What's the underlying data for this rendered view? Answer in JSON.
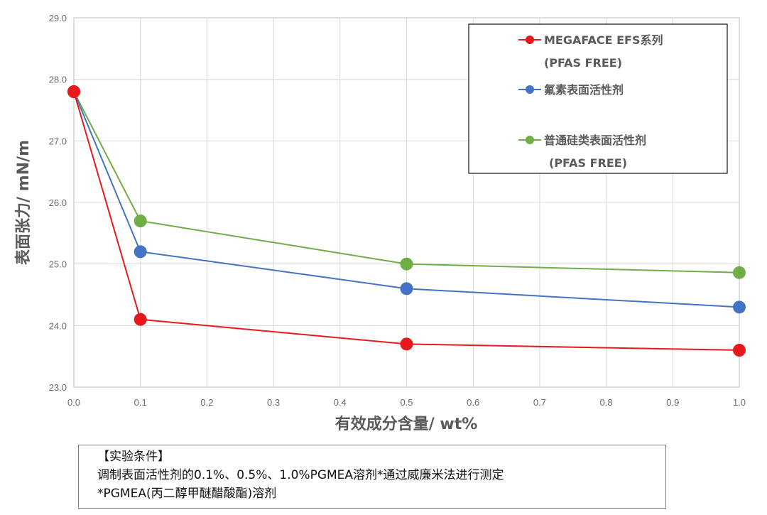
{
  "chart_data": {
    "type": "line",
    "xlabel": "有效成分含量/ wt%",
    "ylabel": "表面张力/ mN/m",
    "xlim": [
      0.0,
      1.0
    ],
    "ylim": [
      23.0,
      29.0
    ],
    "x_ticks": [
      "0.0",
      "0.1",
      "0.2",
      "0.3",
      "0.4",
      "0.5",
      "0.6",
      "0.7",
      "0.8",
      "0.9",
      "1.0"
    ],
    "y_ticks": [
      "23.0",
      "24.0",
      "25.0",
      "26.0",
      "27.0",
      "28.0",
      "29.0"
    ],
    "grid": true,
    "legend_position": "top-right",
    "series": [
      {
        "name": "MEGAFACE EFS系列",
        "name_line2": "(PFAS FREE)",
        "color": "#e8191c",
        "x": [
          0.0,
          0.1,
          0.5,
          1.0
        ],
        "y": [
          27.8,
          24.1,
          23.7,
          23.6
        ]
      },
      {
        "name": "氟素表面活性剂",
        "color": "#4472c4",
        "x": [
          0.0,
          0.1,
          0.5,
          1.0
        ],
        "y": [
          27.8,
          25.2,
          24.6,
          24.3
        ]
      },
      {
        "name": "普通硅类表面活性剂",
        "name_line2": "(PFAS FREE)",
        "color": "#70ad47",
        "x": [
          0.0,
          0.1,
          0.5,
          1.0
        ],
        "y": [
          27.8,
          25.7,
          25.0,
          24.86
        ]
      }
    ]
  },
  "note": {
    "title": "【实验条件】",
    "line1": "调制表面活性剂的0.1%、0.5%、1.0%PGMEA溶剂*通过威廉米法进行测定",
    "line2": "*PGMEA(丙二醇甲醚醋酸酯)溶剂"
  }
}
